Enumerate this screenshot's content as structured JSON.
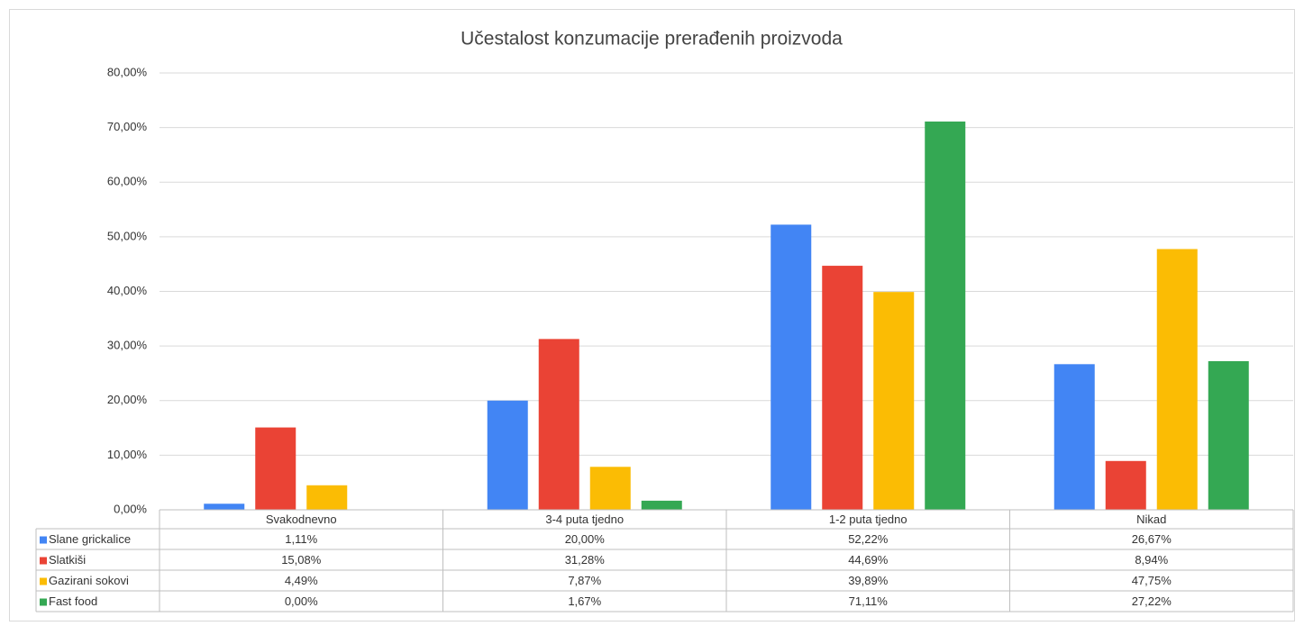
{
  "chart_data": {
    "type": "bar",
    "title": "Učestalost konzumacije prerađenih proizvoda",
    "categories": [
      "Svakodnevno",
      "3-4 puta tjedno",
      "1-2 puta tjedno",
      "Nikad"
    ],
    "series": [
      {
        "name": "Slane grickalice",
        "color": "#4285f4",
        "values": [
          1.11,
          20.0,
          52.22,
          26.67
        ],
        "value_labels": [
          "1,11%",
          "20,00%",
          "52,22%",
          "26,67%"
        ]
      },
      {
        "name": "Slatkiši",
        "color": "#ea4335",
        "values": [
          15.08,
          31.28,
          44.69,
          8.94
        ],
        "value_labels": [
          "15,08%",
          "31,28%",
          "44,69%",
          "8,94%"
        ]
      },
      {
        "name": "Gazirani sokovi",
        "color": "#fbbc04",
        "values": [
          4.49,
          7.87,
          39.89,
          47.75
        ],
        "value_labels": [
          "4,49%",
          "7,87%",
          "39,89%",
          "47,75%"
        ]
      },
      {
        "name": "Fast food",
        "color": "#34a853",
        "values": [
          0.0,
          1.67,
          71.11,
          27.22
        ],
        "value_labels": [
          "0,00%",
          "1,67%",
          "71,11%",
          "27,22%"
        ]
      }
    ],
    "ylim": [
      0,
      80
    ],
    "yticks": [
      {
        "value": 0,
        "label": "0,00%"
      },
      {
        "value": 10,
        "label": "10,00%"
      },
      {
        "value": 20,
        "label": "20,00%"
      },
      {
        "value": 30,
        "label": "30,00%"
      },
      {
        "value": 40,
        "label": "40,00%"
      },
      {
        "value": 50,
        "label": "50,00%"
      },
      {
        "value": 60,
        "label": "60,00%"
      },
      {
        "value": 70,
        "label": "70,00%"
      },
      {
        "value": 80,
        "label": "80,00%"
      }
    ],
    "grid": true
  }
}
